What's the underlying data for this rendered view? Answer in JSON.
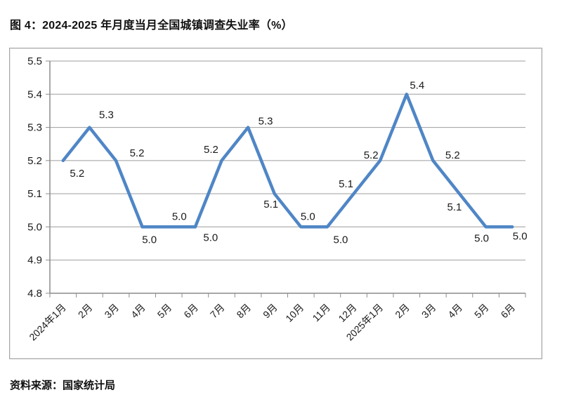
{
  "page": {
    "title": "图 4：2024-2025 年月度当月全国城镇调查失业率（%）",
    "source": "资料来源：国家统计局"
  },
  "chart_data": {
    "type": "line",
    "title": "2024-2025 年月度当月全国城镇调查失业率（%）",
    "categories": [
      "2024年1月",
      "2月",
      "3月",
      "4月",
      "5月",
      "6月",
      "7月",
      "8月",
      "9月",
      "10月",
      "11月",
      "12月",
      "2025年1月",
      "2月",
      "3月",
      "4月",
      "5月",
      "6月"
    ],
    "values": [
      5.2,
      5.3,
      5.2,
      5.0,
      5.0,
      5.0,
      5.2,
      5.3,
      5.1,
      5.0,
      5.0,
      5.1,
      5.2,
      5.4,
      5.2,
      5.1,
      5.0,
      5.0
    ],
    "data_labels_shown": true,
    "xlabel": "",
    "ylabel": "",
    "ylim": [
      4.8,
      5.5
    ],
    "ytick_step": 0.1,
    "ytick_labels": [
      "4.8",
      "4.9",
      "5.0",
      "5.1",
      "5.2",
      "5.3",
      "5.4",
      "5.5"
    ],
    "grid": true,
    "legend": "none",
    "colors": {
      "line": "#4f86c6",
      "gridline": "#9d9d9d",
      "axis": "#8c8c8c",
      "border": "#a6a6a6",
      "label_text": "#1a1a1a"
    }
  }
}
